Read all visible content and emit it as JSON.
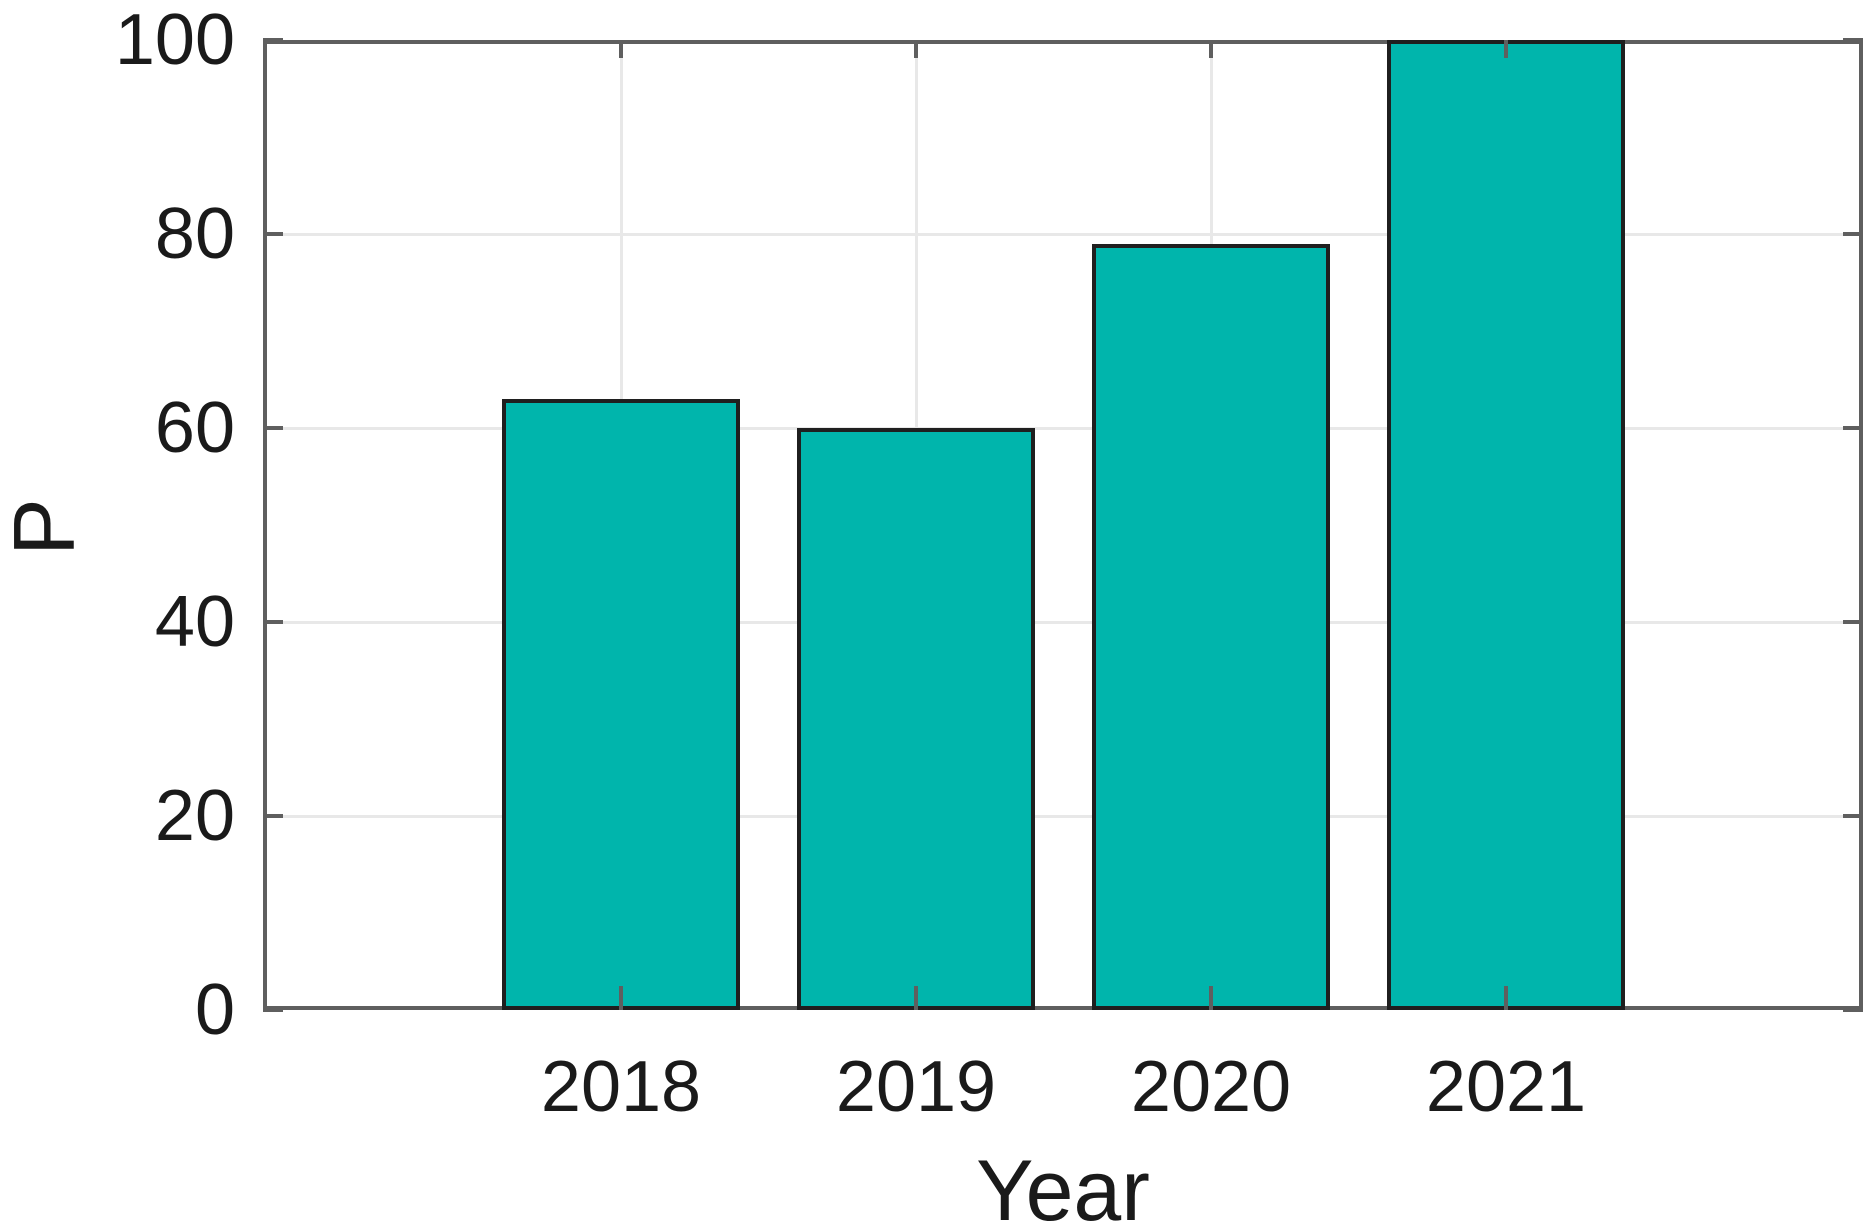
{
  "figure": {
    "background": "#ffffff"
  },
  "chart_data": {
    "type": "bar",
    "categories": [
      "2018",
      "2019",
      "2020",
      "2021"
    ],
    "values": [
      63,
      60,
      79,
      100
    ],
    "title": "",
    "xlabel": "Year",
    "ylabel": "P",
    "ylim": [
      0,
      100
    ],
    "yticks": [
      0,
      20,
      40,
      60,
      80,
      100
    ],
    "grid": "on",
    "legend": "none",
    "bar_color": "#00b5ac",
    "bar_edge_color": "#1f1f1f",
    "axis_color": "#5f5f5f",
    "grid_color": "#e8e8e8",
    "text_color": "#1a1a1a"
  }
}
